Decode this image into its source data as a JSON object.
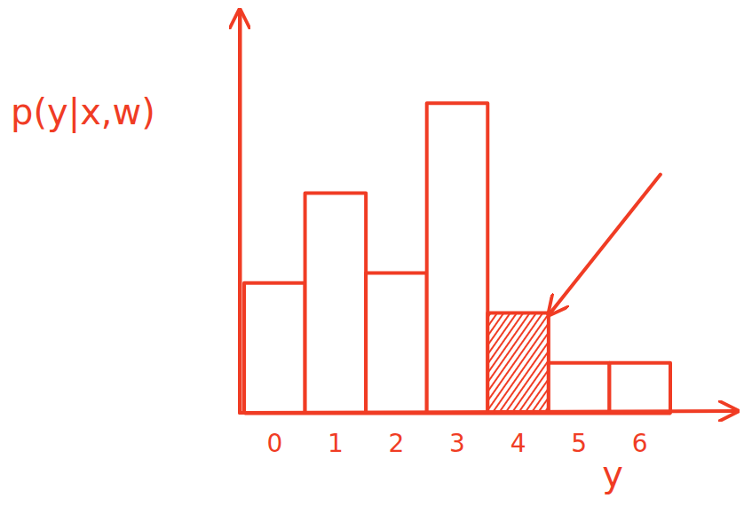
{
  "chart_data": {
    "type": "bar",
    "ylabel": "p(y|x,w)",
    "xlabel": "y",
    "categories": [
      "0",
      "1",
      "2",
      "3",
      "4",
      "5",
      "6"
    ],
    "values": [
      0.13,
      0.22,
      0.14,
      0.31,
      0.1,
      0.05,
      0.05
    ],
    "color": "#f03c24",
    "colors": [
      "#ffffff",
      "#ffffff",
      "#ffffff",
      "#ffffff",
      "#f03c24",
      "#ffffff",
      "#ffffff"
    ],
    "ylim": [
      0,
      0.4
    ],
    "yticks": [],
    "tick_labels": "x",
    "grid": false
  }
}
